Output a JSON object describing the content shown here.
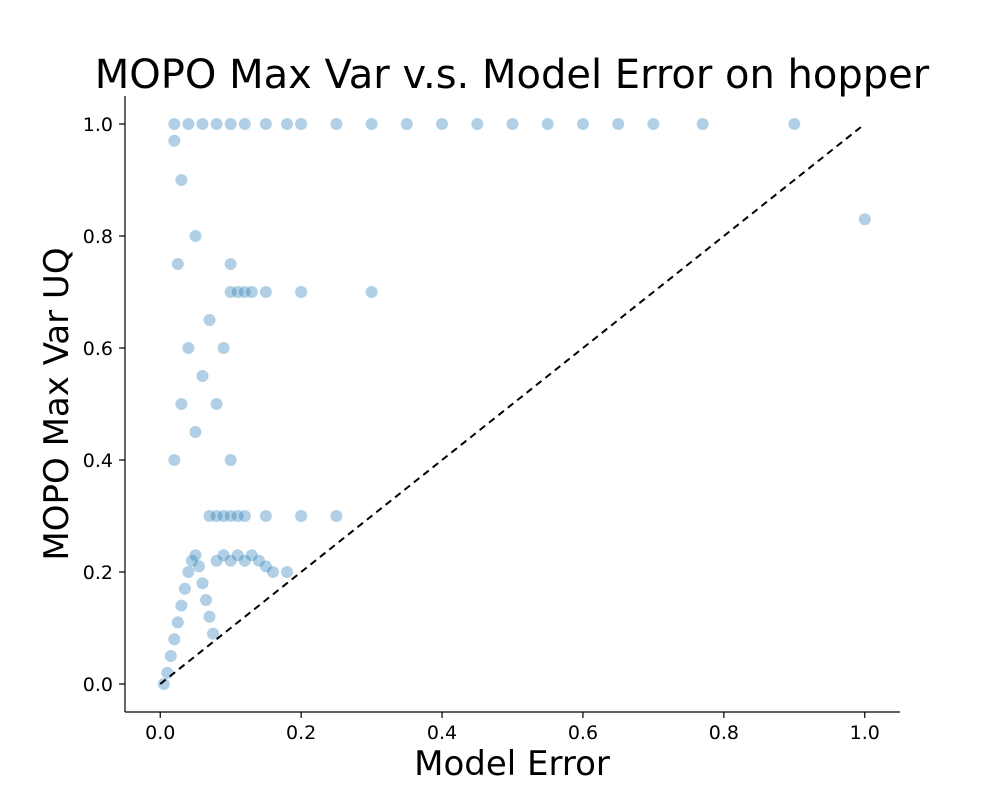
{
  "chart_data": {
    "type": "scatter",
    "title": "MOPO Max Var v.s. Model Error on hopper",
    "xlabel": "Model Error",
    "ylabel": "MOPO Max Var UQ",
    "xlim": [
      -0.05,
      1.05
    ],
    "ylim": [
      -0.05,
      1.05
    ],
    "xticks": [
      0.0,
      0.2,
      0.4,
      0.6,
      0.8,
      1.0
    ],
    "yticks": [
      0.0,
      0.2,
      0.4,
      0.6,
      0.8,
      1.0
    ],
    "xtick_labels": [
      "0.0",
      "0.2",
      "0.4",
      "0.6",
      "0.8",
      "1.0"
    ],
    "ytick_labels": [
      "0.0",
      "0.2",
      "0.4",
      "0.6",
      "0.8",
      "1.0"
    ],
    "grid": false,
    "legend": "none",
    "marker_color": "#1f77b4",
    "reference_line": {
      "x": [
        0.0,
        1.0
      ],
      "y": [
        0.0,
        1.0
      ],
      "style": "dashed",
      "color": "#000000"
    },
    "series": [
      {
        "points": [
          [
            0.005,
            0.0
          ],
          [
            0.01,
            0.02
          ],
          [
            0.015,
            0.05
          ],
          [
            0.02,
            0.08
          ],
          [
            0.025,
            0.11
          ],
          [
            0.03,
            0.14
          ],
          [
            0.035,
            0.17
          ],
          [
            0.04,
            0.2
          ],
          [
            0.045,
            0.22
          ],
          [
            0.05,
            0.23
          ],
          [
            0.055,
            0.21
          ],
          [
            0.06,
            0.18
          ],
          [
            0.065,
            0.15
          ],
          [
            0.07,
            0.12
          ],
          [
            0.075,
            0.09
          ],
          [
            0.08,
            0.22
          ],
          [
            0.09,
            0.23
          ],
          [
            0.1,
            0.22
          ],
          [
            0.11,
            0.23
          ],
          [
            0.12,
            0.22
          ],
          [
            0.13,
            0.23
          ],
          [
            0.14,
            0.22
          ],
          [
            0.15,
            0.21
          ],
          [
            0.16,
            0.2
          ],
          [
            0.18,
            0.2
          ],
          [
            0.07,
            0.3
          ],
          [
            0.08,
            0.3
          ],
          [
            0.09,
            0.3
          ],
          [
            0.1,
            0.3
          ],
          [
            0.11,
            0.3
          ],
          [
            0.12,
            0.3
          ],
          [
            0.15,
            0.3
          ],
          [
            0.2,
            0.3
          ],
          [
            0.25,
            0.3
          ],
          [
            0.1,
            0.7
          ],
          [
            0.11,
            0.7
          ],
          [
            0.12,
            0.7
          ],
          [
            0.13,
            0.7
          ],
          [
            0.15,
            0.7
          ],
          [
            0.2,
            0.7
          ],
          [
            0.3,
            0.7
          ],
          [
            0.02,
            1.0
          ],
          [
            0.04,
            1.0
          ],
          [
            0.06,
            1.0
          ],
          [
            0.08,
            1.0
          ],
          [
            0.1,
            1.0
          ],
          [
            0.12,
            1.0
          ],
          [
            0.15,
            1.0
          ],
          [
            0.18,
            1.0
          ],
          [
            0.2,
            1.0
          ],
          [
            0.25,
            1.0
          ],
          [
            0.3,
            1.0
          ],
          [
            0.35,
            1.0
          ],
          [
            0.4,
            1.0
          ],
          [
            0.45,
            1.0
          ],
          [
            0.5,
            1.0
          ],
          [
            0.55,
            1.0
          ],
          [
            0.6,
            1.0
          ],
          [
            0.65,
            1.0
          ],
          [
            0.7,
            1.0
          ],
          [
            0.77,
            1.0
          ],
          [
            0.9,
            1.0
          ],
          [
            1.0,
            0.83
          ],
          [
            0.02,
            0.4
          ],
          [
            0.03,
            0.5
          ],
          [
            0.04,
            0.6
          ],
          [
            0.05,
            0.45
          ],
          [
            0.06,
            0.55
          ],
          [
            0.07,
            0.65
          ],
          [
            0.08,
            0.5
          ],
          [
            0.09,
            0.6
          ],
          [
            0.1,
            0.4
          ],
          [
            0.025,
            0.75
          ],
          [
            0.05,
            0.8
          ],
          [
            0.1,
            0.75
          ],
          [
            0.03,
            0.9
          ],
          [
            0.02,
            0.97
          ]
        ]
      }
    ]
  }
}
